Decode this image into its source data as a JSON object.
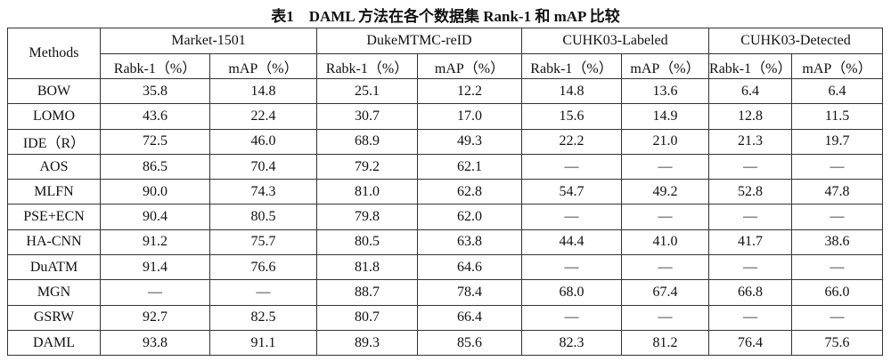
{
  "title": "表1　DAML 方法在各个数据集 Rank-1 和 mAP 比较",
  "table": {
    "methods_header": "Methods",
    "groups": [
      "Market-1501",
      "DukeMTMC-reID",
      "CUHK03-Labeled",
      "CUHK03-Detected"
    ],
    "subheaders": [
      "Rabk-1（%）",
      "mAP（%）",
      "Rabk-1（%）",
      "mAP（%）",
      "Rabk-1（%）",
      "mAP（%）",
      "Rabk-1（%）",
      "mAP（%）"
    ],
    "rows": [
      [
        "BOW",
        "35.8",
        "14.8",
        "25.1",
        "12.2",
        "14.8",
        "13.6",
        "6.4",
        "6.4"
      ],
      [
        "LOMO",
        "43.6",
        "22.4",
        "30.7",
        "17.0",
        "15.6",
        "14.9",
        "12.8",
        "11.5"
      ],
      [
        "IDE（R）",
        "72.5",
        "46.0",
        "68.9",
        "49.3",
        "22.2",
        "21.0",
        "21.3",
        "19.7"
      ],
      [
        "AOS",
        "86.5",
        "70.4",
        "79.2",
        "62.1",
        "—",
        "—",
        "—",
        "—"
      ],
      [
        "MLFN",
        "90.0",
        "74.3",
        "81.0",
        "62.8",
        "54.7",
        "49.2",
        "52.8",
        "47.8"
      ],
      [
        "PSE+ECN",
        "90.4",
        "80.5",
        "79.8",
        "62.0",
        "—",
        "—",
        "—",
        "—"
      ],
      [
        "HA-CNN",
        "91.2",
        "75.7",
        "80.5",
        "63.8",
        "44.4",
        "41.0",
        "41.7",
        "38.6"
      ],
      [
        "DuATM",
        "91.4",
        "76.6",
        "81.8",
        "64.6",
        "—",
        "—",
        "—",
        "—"
      ],
      [
        "MGN",
        "—",
        "—",
        "88.7",
        "78.4",
        "68.0",
        "67.4",
        "66.8",
        "66.0"
      ],
      [
        "GSRW",
        "92.7",
        "82.5",
        "80.7",
        "66.4",
        "—",
        "—",
        "—",
        "—"
      ],
      [
        "DAML",
        "93.8",
        "91.1",
        "89.3",
        "85.6",
        "82.3",
        "81.2",
        "76.4",
        "75.6"
      ]
    ]
  }
}
